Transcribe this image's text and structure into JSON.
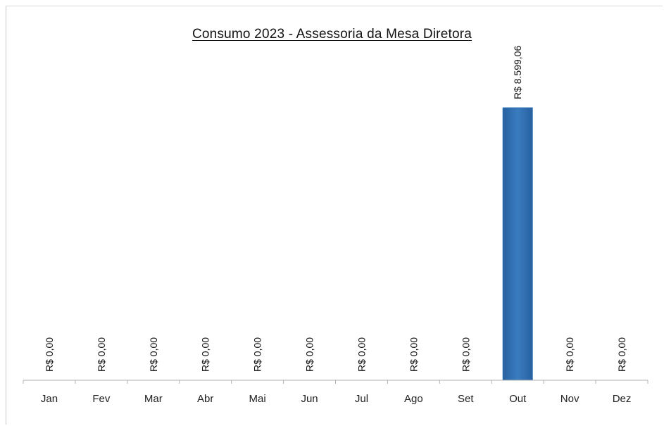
{
  "chart_data": {
    "type": "bar",
    "title": "Consumo 2023 - Assessoria da Mesa Diretora",
    "categories": [
      "Jan",
      "Fev",
      "Mar",
      "Abr",
      "Mai",
      "Jun",
      "Jul",
      "Ago",
      "Set",
      "Out",
      "Nov",
      "Dez"
    ],
    "values": [
      0,
      0,
      0,
      0,
      0,
      0,
      0,
      0,
      0,
      8599.06,
      0,
      0
    ],
    "data_labels": [
      "R$ 0,00",
      "R$ 0,00",
      "R$ 0,00",
      "R$ 0,00",
      "R$ 0,00",
      "R$ 0,00",
      "R$ 0,00",
      "R$ 0,00",
      "R$ 0,00",
      "R$ 8.599,06",
      "R$ 0,00",
      "R$ 0,00"
    ],
    "ylim": [
      0,
      10000
    ],
    "grid": false,
    "legend": "none",
    "bar_color": "#2e6db0",
    "axis_color": "#b0b0b0"
  }
}
